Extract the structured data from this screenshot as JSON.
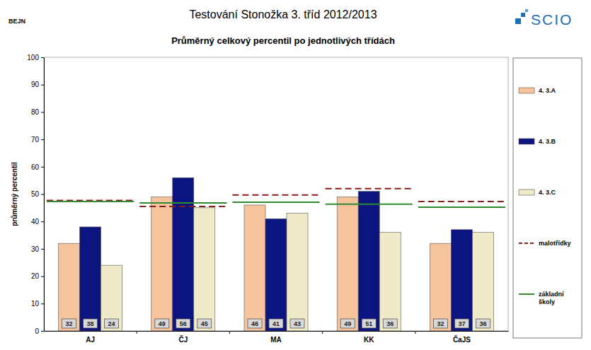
{
  "chart_data": {
    "type": "bar",
    "title": "Testování Stonožka 3. tříd 2012/2013",
    "subtitle": "Průměrný celkový percentil po jednotlivých třídách",
    "annotations": [
      "BEJN",
      "SCIO"
    ],
    "y_label": "průměrný percentil",
    "categories": [
      "AJ",
      "ČJ",
      "MA",
      "KK",
      "ČaJS"
    ],
    "series": [
      {
        "name": "4. 3.A",
        "color": "#f5c39c",
        "values": [
          32,
          49,
          46,
          49,
          32
        ]
      },
      {
        "name": "4. 3.B",
        "color": "#0c1480",
        "values": [
          38,
          56,
          41,
          51,
          37
        ]
      },
      {
        "name": "4. 3.C",
        "color": "#efebc8",
        "values": [
          24,
          45,
          43,
          36,
          36
        ]
      },
      {
        "name": "malotřídky",
        "type": "line",
        "line_style": "dashed",
        "color": "#8b1c1c",
        "values": [
          47.7,
          45.5,
          49.7,
          52,
          47.3
        ]
      },
      {
        "name": "základní školy",
        "type": "line",
        "line_style": "solid",
        "color": "#2e8b2e",
        "values": [
          47.3,
          46.8,
          47,
          46.3,
          45.2
        ]
      }
    ],
    "ylim": [
      0,
      100
    ],
    "yticks": [
      0,
      10,
      20,
      30,
      40,
      50,
      60,
      70,
      80,
      90,
      100
    ],
    "grid": false,
    "legend": "right",
    "data_labels": true
  }
}
